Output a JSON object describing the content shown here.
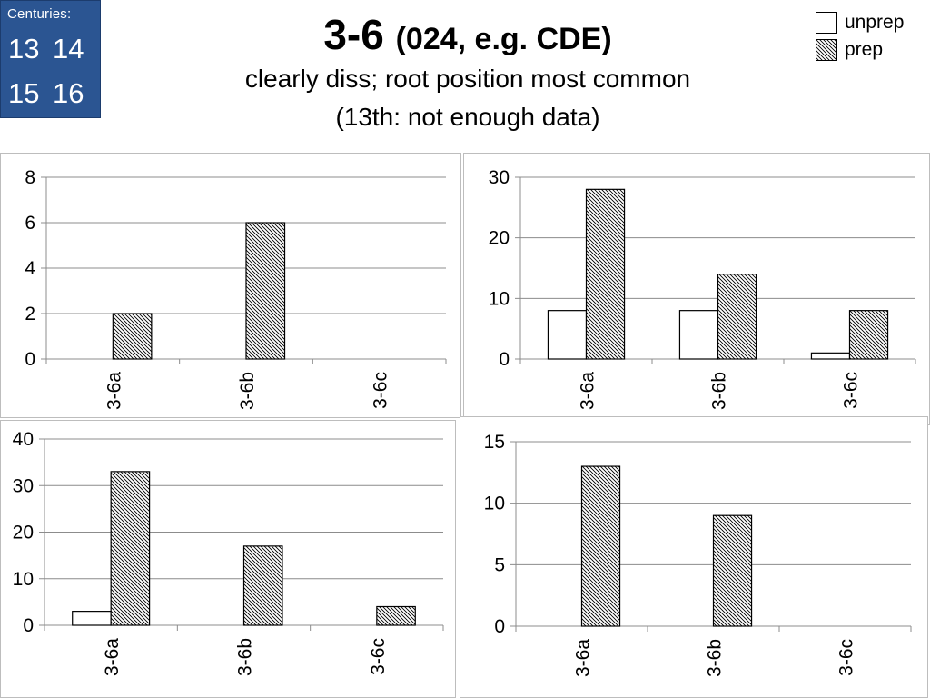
{
  "badge": {
    "caption": "Centuries:",
    "centuries": [
      "13",
      "14",
      "15",
      "16"
    ]
  },
  "header": {
    "title_main": "3-6",
    "title_sub": "(024, e.g. CDE)",
    "subtitle_line1": "clearly diss; root position most common",
    "subtitle_line2": "(13th: not enough data)"
  },
  "legend": {
    "items": [
      {
        "label": "unprep",
        "pattern": "blank"
      },
      {
        "label": "prep",
        "pattern": "hatched"
      }
    ]
  },
  "colors": {
    "badge_background": "#2b5592",
    "gridline": "#8c8c8c",
    "bar_outline": "#000000"
  },
  "chart_data": [
    {
      "type": "bar",
      "categories": [
        "3-6a",
        "3-6b",
        "3-6c"
      ],
      "series": [
        {
          "name": "unprep",
          "values": [
            0,
            0,
            0
          ]
        },
        {
          "name": "prep",
          "values": [
            2,
            6,
            0
          ]
        }
      ],
      "ylim": [
        0,
        8
      ],
      "yticks": [
        0,
        2,
        4,
        6,
        8
      ],
      "grid": true
    },
    {
      "type": "bar",
      "categories": [
        "3-6a",
        "3-6b",
        "3-6c"
      ],
      "series": [
        {
          "name": "unprep",
          "values": [
            8,
            8,
            1
          ]
        },
        {
          "name": "prep",
          "values": [
            28,
            14,
            8
          ]
        }
      ],
      "ylim": [
        0,
        30
      ],
      "yticks": [
        0,
        10,
        20,
        30
      ],
      "grid": true
    },
    {
      "type": "bar",
      "categories": [
        "3-6a",
        "3-6b",
        "3-6c"
      ],
      "series": [
        {
          "name": "unprep",
          "values": [
            3,
            0,
            0
          ]
        },
        {
          "name": "prep",
          "values": [
            33,
            17,
            4
          ]
        }
      ],
      "ylim": [
        0,
        40
      ],
      "yticks": [
        0,
        10,
        20,
        30,
        40
      ],
      "grid": true
    },
    {
      "type": "bar",
      "categories": [
        "3-6a",
        "3-6b",
        "3-6c"
      ],
      "series": [
        {
          "name": "unprep",
          "values": [
            0,
            0,
            0
          ]
        },
        {
          "name": "prep",
          "values": [
            13,
            9,
            0
          ]
        }
      ],
      "ylim": [
        0,
        15
      ],
      "yticks": [
        0,
        5,
        10,
        15
      ],
      "grid": true
    }
  ]
}
